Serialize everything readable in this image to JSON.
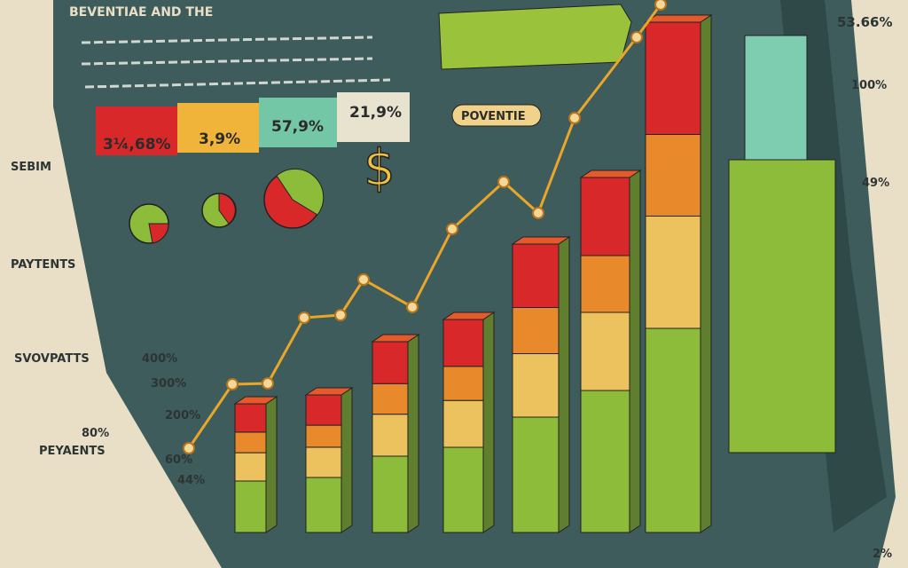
{
  "header": {
    "title": "BEVENTIAE AND THE"
  },
  "stat_boxes": [
    "3¼,68%",
    "3,9%",
    "57,9%",
    "21,9%"
  ],
  "callouts": [
    "POVENTIE"
  ],
  "left_labels": [
    "SEBIM",
    "PAYTENTS",
    "SVOVPATTS",
    "PEYAENTS"
  ],
  "axis_labels": [
    "400%",
    "300%",
    "200%",
    "80%",
    "60%",
    "44%"
  ],
  "right_labels": [
    "53.66%",
    "100%",
    "49%",
    "2%"
  ]
}
